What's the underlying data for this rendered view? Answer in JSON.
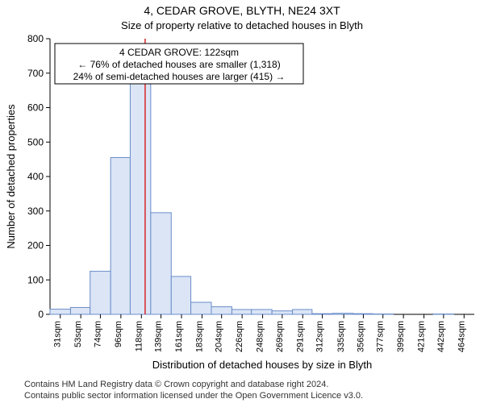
{
  "title": "4, CEDAR GROVE, BLYTH, NE24 3XT",
  "subtitle": "Size of property relative to detached houses in Blyth",
  "y_axis_label": "Number of detached properties",
  "x_axis_label": "Distribution of detached houses by size in Blyth",
  "footer_line1": "Contains HM Land Registry data © Crown copyright and database right 2024.",
  "footer_line2": "Contains public sector information licensed under the Open Government Licence v3.0.",
  "annotation": {
    "line1": "4 CEDAR GROVE: 122sqm",
    "line2": "← 76% of detached houses are smaller (1,318)",
    "line3": "24% of semi-detached houses are larger (415) →"
  },
  "histogram": {
    "type": "histogram",
    "bar_fill": "#dbe5f6",
    "bar_stroke": "#6a8dc9",
    "background_color": "#ffffff",
    "reference_line_color": "#d62728",
    "reference_value": 122,
    "ylim": [
      0,
      800
    ],
    "ytick_step": 100,
    "x_tick_labels": [
      "31sqm",
      "53sqm",
      "74sqm",
      "96sqm",
      "118sqm",
      "139sqm",
      "161sqm",
      "183sqm",
      "204sqm",
      "226sqm",
      "248sqm",
      "269sqm",
      "291sqm",
      "312sqm",
      "335sqm",
      "356sqm",
      "377sqm",
      "399sqm",
      "421sqm",
      "442sqm",
      "464sqm"
    ],
    "x_tick_values": [
      31,
      53,
      74,
      96,
      118,
      139,
      161,
      183,
      204,
      226,
      248,
      269,
      291,
      312,
      335,
      356,
      377,
      399,
      421,
      442,
      464
    ],
    "xlim": [
      20,
      475
    ],
    "bars": [
      {
        "x0": 20,
        "x1": 42,
        "y": 15
      },
      {
        "x0": 42,
        "x1": 63,
        "y": 20
      },
      {
        "x0": 63,
        "x1": 85,
        "y": 125
      },
      {
        "x0": 85,
        "x1": 106,
        "y": 455
      },
      {
        "x0": 106,
        "x1": 128,
        "y": 700
      },
      {
        "x0": 128,
        "x1": 150,
        "y": 295
      },
      {
        "x0": 150,
        "x1": 171,
        "y": 110
      },
      {
        "x0": 171,
        "x1": 193,
        "y": 35
      },
      {
        "x0": 193,
        "x1": 215,
        "y": 22
      },
      {
        "x0": 215,
        "x1": 236,
        "y": 14
      },
      {
        "x0": 236,
        "x1": 258,
        "y": 14
      },
      {
        "x0": 258,
        "x1": 280,
        "y": 10
      },
      {
        "x0": 280,
        "x1": 301,
        "y": 14
      },
      {
        "x0": 301,
        "x1": 323,
        "y": 2
      },
      {
        "x0": 323,
        "x1": 345,
        "y": 3
      },
      {
        "x0": 345,
        "x1": 366,
        "y": 2
      },
      {
        "x0": 366,
        "x1": 388,
        "y": 1
      },
      {
        "x0": 388,
        "x1": 410,
        "y": 0
      },
      {
        "x0": 410,
        "x1": 431,
        "y": 0
      },
      {
        "x0": 431,
        "x1": 453,
        "y": 1
      },
      {
        "x0": 453,
        "x1": 475,
        "y": 0
      }
    ]
  }
}
